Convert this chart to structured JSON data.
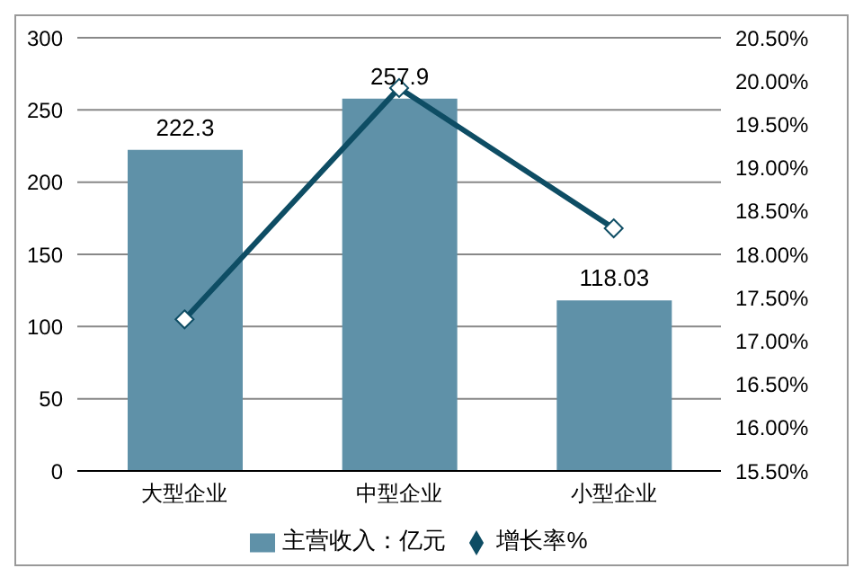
{
  "chart_data": {
    "type": "bar",
    "categories": [
      "大型企业",
      "中型企业",
      "小型企业"
    ],
    "series": [
      {
        "name": "主营收入：亿元",
        "color": "#5f91a8",
        "values": [
          222.3,
          257.9,
          118.03
        ],
        "value_labels": [
          "222.3",
          "257.9",
          "118.03"
        ]
      },
      {
        "name": "增长率%",
        "type": "line",
        "axis": "y2",
        "color": "#0e4d64",
        "values": [
          17.25,
          19.92,
          18.3
        ],
        "marker": "diamond"
      }
    ],
    "ylim": [
      0,
      300
    ],
    "yticks": [
      0,
      50,
      100,
      150,
      200,
      250,
      300
    ],
    "y2lim": [
      15.5,
      20.5
    ],
    "y2ticks": [
      {
        "value": 15.5,
        "label": "15.50%"
      },
      {
        "value": 16,
        "label": "16.00%"
      },
      {
        "value": 16.5,
        "label": "16.50%"
      },
      {
        "value": 17,
        "label": "17.00%"
      },
      {
        "value": 17.5,
        "label": "17.50%"
      },
      {
        "value": 18,
        "label": "18.00%"
      },
      {
        "value": 18.5,
        "label": "18.50%"
      },
      {
        "value": 19,
        "label": "19.00%"
      },
      {
        "value": 19.5,
        "label": "19.50%"
      },
      {
        "value": 20,
        "label": "20.00%"
      },
      {
        "value": 20.5,
        "label": "20.50%"
      }
    ],
    "grid": "y",
    "legend": "bottom"
  }
}
